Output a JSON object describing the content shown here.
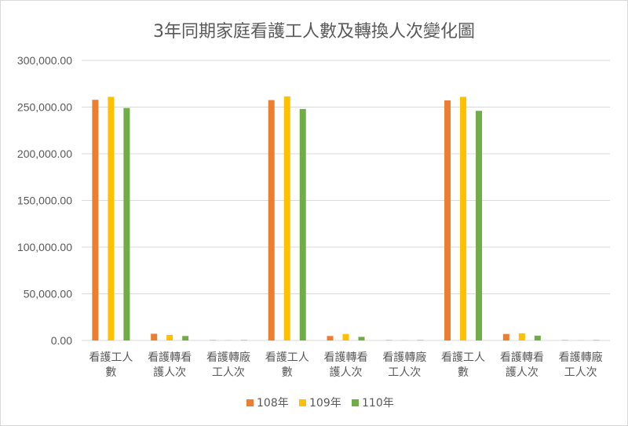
{
  "chart_data": {
    "type": "bar",
    "title": "3年同期家庭看護工人數及轉換人次變化圖",
    "categories": [
      [
        "看護工人",
        "數"
      ],
      [
        "看護轉看",
        "護人次"
      ],
      [
        "看護轉廠",
        "工人次"
      ],
      [
        "看護工人",
        "數"
      ],
      [
        "看護轉看",
        "護人次"
      ],
      [
        "看護轉廠",
        "工人次"
      ],
      [
        "看護工人",
        "數"
      ],
      [
        "看護轉看",
        "護人次"
      ],
      [
        "看護轉廠",
        "工人次"
      ]
    ],
    "series": [
      {
        "name": "108年",
        "color": "#ED7D31",
        "values": [
          257800,
          7200,
          400,
          257500,
          4800,
          400,
          257200,
          7000,
          400
        ]
      },
      {
        "name": "109年",
        "color": "#FFC000",
        "values": [
          261000,
          6000,
          400,
          261500,
          7000,
          400,
          261000,
          7700,
          400
        ]
      },
      {
        "name": "110年",
        "color": "#70AD47",
        "values": [
          249000,
          4800,
          400,
          248000,
          3900,
          400,
          246000,
          5200,
          400
        ]
      }
    ],
    "ylim": [
      0,
      300000
    ],
    "yticks": [
      "0.00",
      "50,000.00",
      "100,000.00",
      "150,000.00",
      "200,000.00",
      "250,000.00",
      "300,000.00"
    ],
    "ytick_values": [
      0,
      50000,
      100000,
      150000,
      200000,
      250000,
      300000
    ],
    "grid": true,
    "legend_position": "bottom"
  }
}
